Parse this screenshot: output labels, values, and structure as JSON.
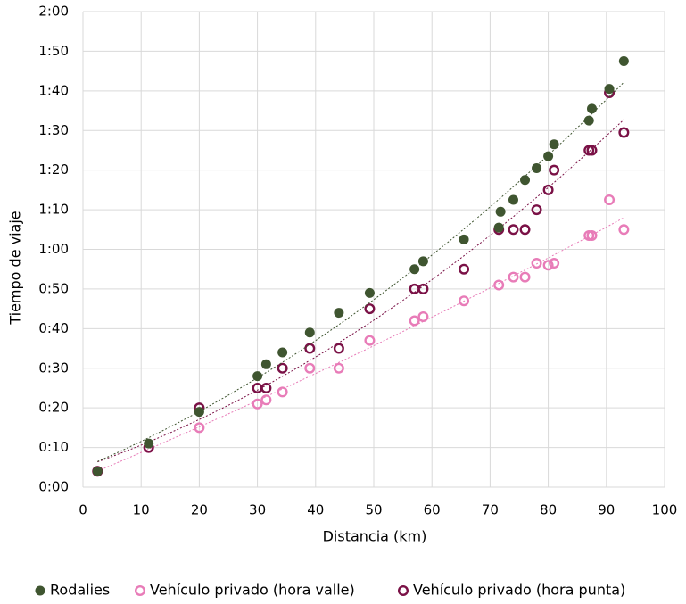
{
  "chart_data": {
    "type": "scatter",
    "x_label": "Distancia (km)",
    "y_label": "Tiempo de viaje",
    "xlim": [
      0,
      100
    ],
    "xticks": [
      0,
      10,
      20,
      30,
      40,
      50,
      60,
      70,
      80,
      90,
      100
    ],
    "ylim": [
      0,
      120
    ],
    "yticks": [
      {
        "value": 0,
        "label": "0:00"
      },
      {
        "value": 10,
        "label": "0:10"
      },
      {
        "value": 20,
        "label": "0:20"
      },
      {
        "value": 30,
        "label": "0:30"
      },
      {
        "value": 40,
        "label": "0:40"
      },
      {
        "value": 50,
        "label": "0:50"
      },
      {
        "value": 60,
        "label": "1:00"
      },
      {
        "value": 70,
        "label": "1:10"
      },
      {
        "value": 80,
        "label": "1:20"
      },
      {
        "value": 90,
        "label": "1:30"
      },
      {
        "value": 100,
        "label": "1:40"
      },
      {
        "value": 110,
        "label": "1:50"
      },
      {
        "value": 120,
        "label": "2:00"
      }
    ],
    "grid": true,
    "legend": "bottom",
    "series": [
      {
        "name": "Rodalies",
        "color": "#3f5530",
        "marker": "filled",
        "x": [
          2.5,
          11.3,
          20,
          30,
          31.5,
          34.3,
          39,
          44,
          49.3,
          57,
          58.5,
          65.5,
          71.5,
          71.8,
          74,
          76,
          78,
          80,
          81,
          87,
          87.5,
          90.5,
          93
        ],
        "values": [
          4,
          11,
          19,
          28,
          31,
          34,
          39,
          44,
          49,
          55,
          57,
          62.5,
          65.5,
          69.5,
          72.5,
          77.5,
          80.5,
          83.5,
          86.5,
          92.5,
          95.5,
          100.5,
          107.5
        ]
      },
      {
        "name": "Vehículo privado (hora valle)",
        "color": "#e87cb8",
        "marker": "hollow",
        "x": [
          2.5,
          11.3,
          20,
          30,
          31.5,
          34.3,
          39,
          44,
          49.3,
          57,
          58.5,
          65.5,
          71.5,
          74,
          76,
          78,
          80,
          81,
          87,
          87.5,
          90.5,
          93
        ],
        "values": [
          4,
          10,
          15,
          21,
          22,
          24,
          30,
          30,
          37,
          42,
          43,
          47,
          51,
          53,
          53,
          56.5,
          56,
          56.5,
          63.5,
          63.5,
          72.5,
          65
        ]
      },
      {
        "name": "Vehículo privado (hora punta)",
        "color": "#7a1146",
        "marker": "hollow",
        "x": [
          2.5,
          11.3,
          20,
          30,
          31.5,
          34.3,
          39,
          44,
          49.3,
          57,
          58.5,
          65.5,
          71.5,
          74,
          76,
          78,
          80,
          81,
          87,
          87.5,
          90.5,
          93
        ],
        "values": [
          4,
          10,
          20,
          25,
          25,
          30,
          35,
          35,
          45,
          50,
          50,
          55,
          65,
          65,
          65,
          70,
          75,
          80,
          85,
          85,
          99.5,
          89.5
        ]
      }
    ]
  }
}
